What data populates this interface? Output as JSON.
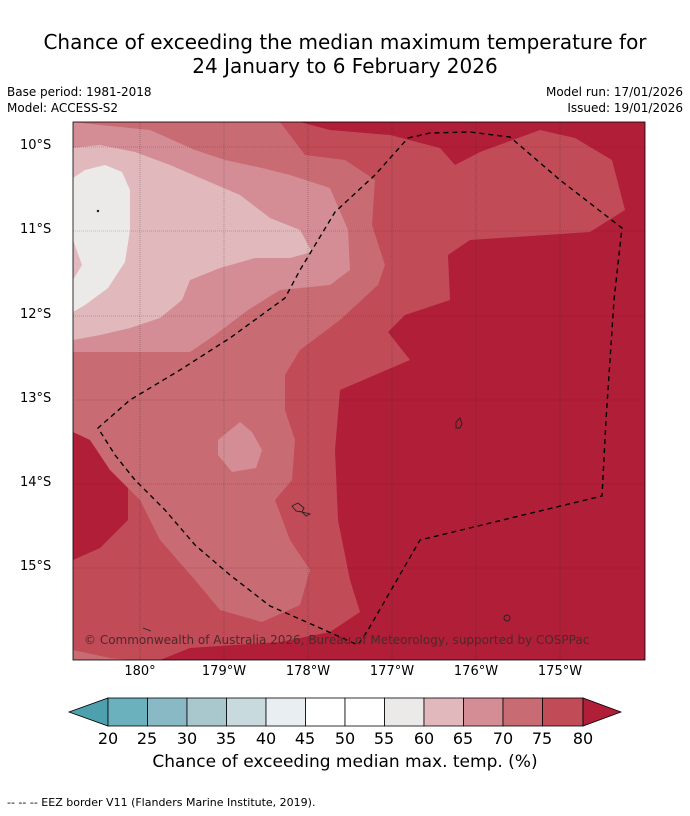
{
  "title": {
    "line1": "Chance of exceeding the median maximum temperature for",
    "line2": "24 January to 6 February 2026"
  },
  "meta": {
    "base_period": "Base period: 1981-2018",
    "model": "Model: ACCESS-S2",
    "model_run": "Model run: 17/01/2026",
    "issued": "Issued: 19/01/2026"
  },
  "map": {
    "lat_labels": [
      "10°S",
      "11°S",
      "12°S",
      "13°S",
      "14°S",
      "15°S"
    ],
    "lon_labels": [
      "180°",
      "179°W",
      "178°W",
      "177°W",
      "176°W",
      "175°W"
    ],
    "copyright": "© Commonwealth of Australia 2026, Bureau of Meteorology, supported by COSPPac"
  },
  "colorbar": {
    "labels": [
      "20",
      "25",
      "30",
      "35",
      "40",
      "45",
      "50",
      "55",
      "60",
      "65",
      "70",
      "75",
      "80"
    ],
    "colors": {
      "below20": "#4ea0ae",
      "c20_25": "#6bb0bd",
      "c25_30": "#8ab9c6",
      "c30_35": "#a8c8ce",
      "c35_40": "#c9dade",
      "c40_45": "#e8eef1",
      "c45_50": "#ffffff",
      "c50_55": "#ffffff",
      "c55_60": "#eceae8",
      "c60_65": "#e1b9bd",
      "c65_70": "#d58d95",
      "c70_75": "#c96b73",
      "c75_80": "#c24b58",
      "above80": "#b01e38"
    },
    "title": "Chance of exceeding median max. temp. (%)"
  },
  "footnote": "--  --  -- EEZ border V11 (Flanders Marine Institute, 2019)."
}
